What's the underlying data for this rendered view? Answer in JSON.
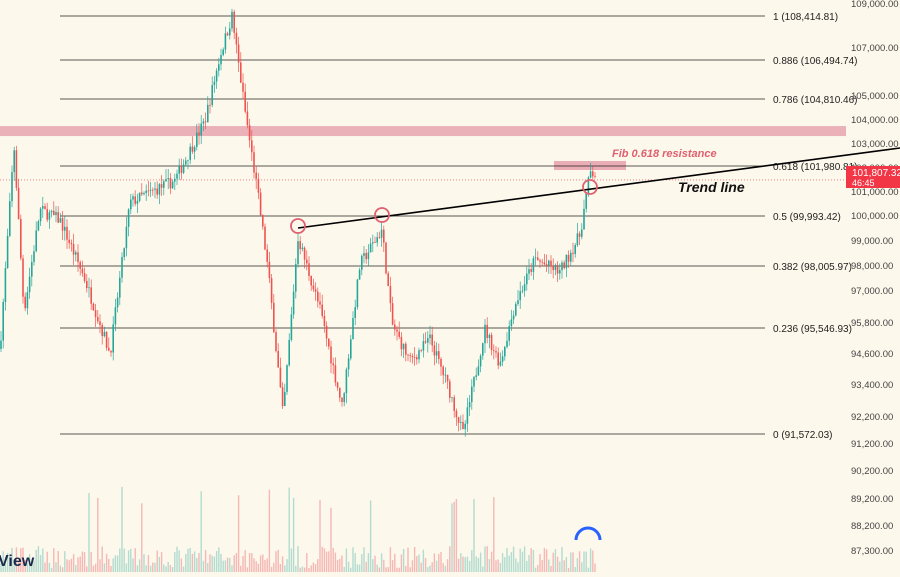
{
  "chart_data": {
    "type": "candlestick",
    "title": "",
    "watermark_fragment": "View",
    "price_axis": {
      "ticks": [
        "109,000.00",
        "107,000.00",
        "105,000.00",
        "104,000.00",
        "103,000.00",
        "102,000.00",
        "101,000.00",
        "100,000.00",
        "99,000.00",
        "98,000.00",
        "97,000.00",
        "95,800.00",
        "94,600.00",
        "93,400.00",
        "92,200.00",
        "91,200.00",
        "90,200.00",
        "89,200.00",
        "88,200.00",
        "87,300.00"
      ],
      "price_range": [
        91572.03,
        108414.81
      ]
    },
    "current_price": {
      "value": "101,807.32",
      "countdown": "46:45",
      "color": "#f23645"
    },
    "fib_levels": [
      {
        "ratio": 1,
        "label": "1 (108,414.81)",
        "price": 108414.81
      },
      {
        "ratio": 0.886,
        "label": "0.886 (106,494.74)",
        "price": 106494.74
      },
      {
        "ratio": 0.786,
        "label": "0.786 (104,810.46)",
        "price": 104810.46
      },
      {
        "ratio": 0.618,
        "label": "0.618 (101,980.81)",
        "price": 101980.81
      },
      {
        "ratio": 0.5,
        "label": "0.5 (99,993.42)",
        "price": 99993.42
      },
      {
        "ratio": 0.382,
        "label": "0.382 (98,005.97)",
        "price": 98005.97
      },
      {
        "ratio": 0.236,
        "label": "0.236 (95,546.93)",
        "price": 95546.93
      },
      {
        "ratio": 0,
        "label": "0 (91,572.03)",
        "price": 91572.03
      }
    ],
    "resistance_zone": {
      "price_low": 103550,
      "price_high": 103900,
      "color": "#e8a4b0"
    },
    "annotations": {
      "fib_resistance_label": "Fib 0.618 resistance",
      "trend_line_label": "Trend line"
    },
    "trend_line_touches": 3,
    "colors": {
      "up": "#26a69a",
      "down": "#ef5350",
      "line": "#000000",
      "circle": "#e06070"
    }
  }
}
